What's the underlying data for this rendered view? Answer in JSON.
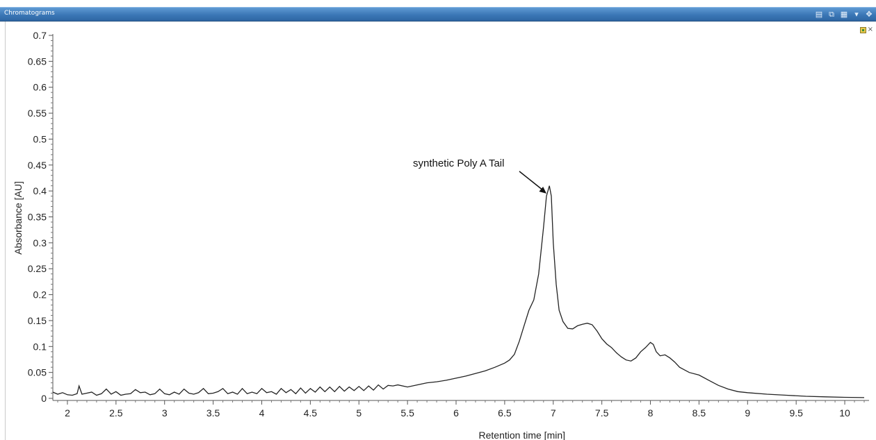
{
  "window": {
    "title": "Chromatograms",
    "toolbar_icons": [
      "table-view-icon",
      "copy-view-icon",
      "grid-icon",
      "layers-dropdown-icon",
      "pan-icon"
    ],
    "corner_icons": [
      "pin-icon",
      "close-icon"
    ]
  },
  "chart_data": {
    "type": "line",
    "title": "",
    "xlabel": "Retention time [min]",
    "ylabel": "Absorbance [AU]",
    "xlim": [
      1.85,
      10.25
    ],
    "ylim": [
      -0.004,
      0.7
    ],
    "x_ticks": [
      2,
      2.5,
      3,
      3.5,
      4,
      4.5,
      5,
      5.5,
      6,
      6.5,
      7,
      7.5,
      8,
      8.5,
      9,
      9.5,
      10
    ],
    "x_tick_labels": [
      "2",
      "2.5",
      "3",
      "3.5",
      "4",
      "4.5",
      "5",
      "5.5",
      "6",
      "6.5",
      "7",
      "7.5",
      "8",
      "8.5",
      "9",
      "9.5",
      "10"
    ],
    "y_ticks": [
      0,
      0.05,
      0.1,
      0.15,
      0.2,
      0.25,
      0.3,
      0.35,
      0.4,
      0.45,
      0.5,
      0.55,
      0.6,
      0.65,
      0.7
    ],
    "y_tick_labels": [
      "0",
      "0.05",
      "0.1",
      "0.15",
      "0.2",
      "0.25",
      "0.3",
      "0.35",
      "0.4",
      "0.45",
      "0.5",
      "0.55",
      "0.6",
      "0.65",
      "0.7"
    ],
    "grid": false,
    "line_color": "#222222",
    "annotation": {
      "text": "synthetic Poly A Tail",
      "target_x": 6.93,
      "target_y": 0.395
    },
    "series": [
      {
        "x": [
          1.85,
          1.9,
          1.95,
          2.0,
          2.05,
          2.1,
          2.12,
          2.15,
          2.2,
          2.25,
          2.3,
          2.35,
          2.4,
          2.45,
          2.5,
          2.55,
          2.6,
          2.65,
          2.7,
          2.75,
          2.8,
          2.85,
          2.9,
          2.95,
          3.0,
          3.05,
          3.1,
          3.15,
          3.2,
          3.25,
          3.3,
          3.35,
          3.4,
          3.45,
          3.5,
          3.55,
          3.6,
          3.65,
          3.7,
          3.75,
          3.8,
          3.85,
          3.9,
          3.95,
          4.0,
          4.05,
          4.1,
          4.15,
          4.2,
          4.25,
          4.3,
          4.35,
          4.4,
          4.45,
          4.5,
          4.55,
          4.6,
          4.65,
          4.7,
          4.75,
          4.8,
          4.85,
          4.9,
          4.95,
          5.0,
          5.05,
          5.1,
          5.15,
          5.2,
          5.25,
          5.3,
          5.35,
          5.4,
          5.5,
          5.6,
          5.7,
          5.8,
          5.9,
          6.0,
          6.1,
          6.2,
          6.3,
          6.4,
          6.5,
          6.55,
          6.6,
          6.65,
          6.7,
          6.75,
          6.8,
          6.85,
          6.9,
          6.93,
          6.96,
          6.98,
          7.0,
          7.03,
          7.06,
          7.1,
          7.15,
          7.2,
          7.25,
          7.3,
          7.35,
          7.4,
          7.45,
          7.5,
          7.55,
          7.6,
          7.65,
          7.7,
          7.75,
          7.8,
          7.85,
          7.9,
          7.95,
          8.0,
          8.03,
          8.06,
          8.1,
          8.15,
          8.2,
          8.25,
          8.3,
          8.4,
          8.5,
          8.6,
          8.7,
          8.8,
          8.9,
          9.0,
          9.2,
          9.4,
          9.6,
          9.8,
          10.0,
          10.2
        ],
        "y": [
          0.012,
          0.008,
          0.011,
          0.007,
          0.006,
          0.009,
          0.024,
          0.008,
          0.01,
          0.012,
          0.006,
          0.009,
          0.018,
          0.008,
          0.013,
          0.006,
          0.008,
          0.009,
          0.017,
          0.011,
          0.012,
          0.007,
          0.009,
          0.018,
          0.009,
          0.007,
          0.012,
          0.008,
          0.018,
          0.01,
          0.008,
          0.011,
          0.019,
          0.009,
          0.01,
          0.013,
          0.019,
          0.009,
          0.012,
          0.008,
          0.019,
          0.009,
          0.012,
          0.009,
          0.019,
          0.011,
          0.013,
          0.008,
          0.019,
          0.011,
          0.017,
          0.009,
          0.02,
          0.01,
          0.019,
          0.012,
          0.022,
          0.013,
          0.022,
          0.013,
          0.023,
          0.014,
          0.022,
          0.015,
          0.023,
          0.015,
          0.024,
          0.016,
          0.026,
          0.018,
          0.025,
          0.024,
          0.026,
          0.022,
          0.026,
          0.03,
          0.032,
          0.035,
          0.039,
          0.043,
          0.048,
          0.053,
          0.06,
          0.068,
          0.074,
          0.085,
          0.11,
          0.14,
          0.17,
          0.19,
          0.24,
          0.33,
          0.39,
          0.41,
          0.39,
          0.3,
          0.22,
          0.17,
          0.148,
          0.135,
          0.134,
          0.14,
          0.143,
          0.145,
          0.142,
          0.13,
          0.115,
          0.105,
          0.098,
          0.088,
          0.08,
          0.074,
          0.072,
          0.078,
          0.09,
          0.098,
          0.108,
          0.104,
          0.09,
          0.082,
          0.084,
          0.078,
          0.07,
          0.06,
          0.05,
          0.045,
          0.035,
          0.025,
          0.018,
          0.013,
          0.011,
          0.008,
          0.006,
          0.004,
          0.003,
          0.002,
          0.0015
        ]
      }
    ]
  }
}
